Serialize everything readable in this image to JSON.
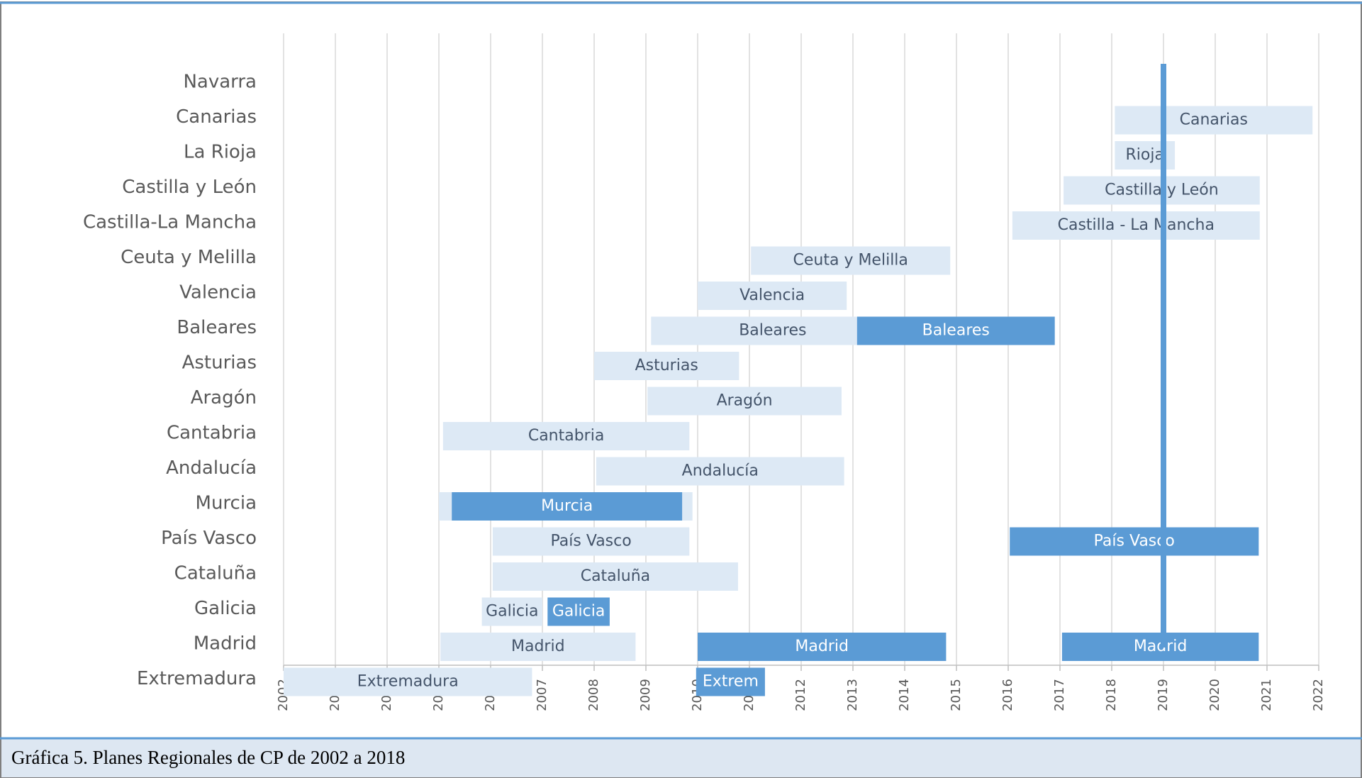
{
  "chart_data": {
    "type": "gantt",
    "categories": [
      "Navarra",
      "Canarias",
      "La Rioja",
      "Castilla y León",
      "Castilla-La Mancha",
      "Ceuta y Melilla",
      "Valencia",
      "Baleares",
      "Asturias",
      "Aragón",
      "Cantabria",
      "Andalucía",
      "Murcia",
      "País Vasco",
      "Cataluña",
      "Galicia",
      "Madrid",
      "Extremadura"
    ],
    "bars": [
      [],
      [
        {
          "start": 2018.06,
          "end": 2021.88,
          "label": "Canarias",
          "color": "#dde9f5"
        }
      ],
      [
        {
          "start": 2018.06,
          "end": 2019.22,
          "label": "Rioja",
          "color": "#dde9f5"
        }
      ],
      [
        {
          "start": 2017.07,
          "end": 2020.86,
          "label": "Castilla y León",
          "color": "#dde9f5"
        }
      ],
      [
        {
          "start": 2016.08,
          "end": 2020.86,
          "label": "Castilla - La Mancha",
          "color": "#dde9f5"
        }
      ],
      [
        {
          "start": 2011.03,
          "end": 2014.88,
          "label": "Ceuta y Melilla",
          "color": "#dde9f5"
        }
      ],
      [
        {
          "start": 2010.0,
          "end": 2012.88,
          "label": "Valencia",
          "color": "#dde9f5"
        }
      ],
      [
        {
          "start": 2009.1,
          "end": 2013.8,
          "label": "Baleares",
          "color": "#dde9f5"
        },
        {
          "start": 2013.08,
          "end": 2016.9,
          "label": "Baleares",
          "color": "#5b9bd5"
        }
      ],
      [
        {
          "start": 2008.0,
          "end": 2010.8,
          "label": "Asturias",
          "color": "#dde9f5"
        }
      ],
      [
        {
          "start": 2009.03,
          "end": 2012.78,
          "label": "Aragón",
          "color": "#dde9f5"
        }
      ],
      [
        {
          "start": 2005.08,
          "end": 2009.84,
          "label": "Cantabria",
          "color": "#dde9f5"
        }
      ],
      [
        {
          "start": 2008.04,
          "end": 2012.83,
          "label": "Andalucía",
          "color": "#dde9f5"
        }
      ],
      [
        {
          "start": 2005.0,
          "end": 2009.9,
          "color": "#dde9f5"
        },
        {
          "start": 2005.25,
          "end": 2009.7,
          "label": "Murcia",
          "color": "#5b9bd5"
        }
      ],
      [
        {
          "start": 2006.04,
          "end": 2009.84,
          "label": "País Vasco",
          "color": "#dde9f5"
        },
        {
          "start": 2016.03,
          "end": 2020.84,
          "label": "País Vasco",
          "color": "#5b9bd5"
        }
      ],
      [
        {
          "start": 2006.04,
          "end": 2010.78,
          "label": "Cataluña",
          "color": "#dde9f5"
        }
      ],
      [
        {
          "start": 2005.83,
          "end": 2007.0,
          "label": "Galicia",
          "color": "#dde9f5"
        },
        {
          "start": 2007.1,
          "end": 2008.3,
          "label": "Galicia",
          "color": "#5b9bd5"
        }
      ],
      [
        {
          "start": 2005.03,
          "end": 2008.8,
          "label": "Madrid",
          "color": "#dde9f5"
        },
        {
          "start": 2010.0,
          "end": 2014.8,
          "label": "Madrid",
          "color": "#5b9bd5"
        },
        {
          "start": 2017.04,
          "end": 2020.84,
          "label": "Madrid",
          "color": "#5b9bd5"
        }
      ],
      [
        {
          "start": 2002.0,
          "end": 2006.8,
          "label": "Extremadura",
          "color": "#dde9f5"
        },
        {
          "start": 2009.97,
          "end": 2011.3,
          "label": "Extrem",
          "color": "#5b9bd5"
        }
      ]
    ],
    "xlim": [
      2002,
      2022
    ],
    "xticks": [
      2002,
      2003,
      2004,
      2005,
      2006,
      2007,
      2008,
      2009,
      2010,
      2011,
      2012,
      2013,
      2014,
      2015,
      2016,
      2017,
      2018,
      2019,
      2020,
      2021,
      2022
    ],
    "grid": true,
    "marker": {
      "value": 2019,
      "color": "#5b9bd5"
    }
  },
  "caption": "Gráfica 5. Planes Regionales de CP de 2002 a 2018"
}
